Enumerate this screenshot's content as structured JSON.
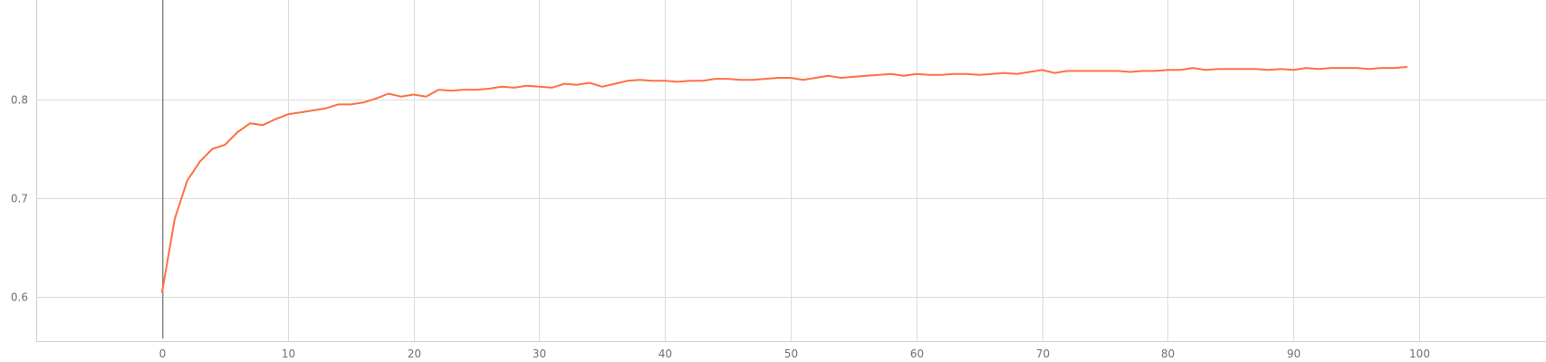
{
  "chart_data": {
    "type": "line",
    "title": "",
    "xlabel": "",
    "ylabel": "",
    "xlim": [
      -10,
      110
    ],
    "ylim": [
      0.555,
      0.875
    ],
    "x_ticks": [
      0,
      10,
      20,
      30,
      40,
      50,
      60,
      70,
      80,
      90,
      100
    ],
    "x_tick_labels": [
      "0",
      "10",
      "20",
      "30",
      "40",
      "50",
      "60",
      "70",
      "80",
      "90",
      "100"
    ],
    "y_ticks": [
      0.6,
      0.7,
      0.8
    ],
    "y_tick_labels": [
      "0.6",
      "0.7",
      "0.8"
    ],
    "grid": true,
    "legend": "none",
    "colors": {
      "series": "#ff7043",
      "grid": "#dcdcdc",
      "zero_line": "#8a8a8a",
      "tick_text": "#6f6f6f"
    },
    "series": [
      {
        "color": "#ff7043",
        "x": [
          0,
          1,
          2,
          3,
          4,
          5,
          6,
          7,
          8,
          9,
          10,
          11,
          12,
          13,
          14,
          15,
          16,
          17,
          18,
          19,
          20,
          21,
          22,
          23,
          24,
          25,
          26,
          27,
          28,
          29,
          30,
          31,
          32,
          33,
          34,
          35,
          36,
          37,
          38,
          39,
          40,
          41,
          42,
          43,
          44,
          45,
          46,
          47,
          48,
          49,
          50,
          51,
          52,
          53,
          54,
          55,
          56,
          57,
          58,
          59,
          60,
          61,
          62,
          63,
          64,
          65,
          66,
          67,
          68,
          69,
          70,
          71,
          72,
          73,
          74,
          75,
          76,
          77,
          78,
          79,
          80,
          81,
          82,
          83,
          84,
          85,
          86,
          87,
          88,
          89,
          90,
          91,
          92,
          93,
          94,
          95,
          96,
          97,
          98,
          99
        ],
        "values": [
          0.605,
          0.679,
          0.718,
          0.737,
          0.75,
          0.754,
          0.767,
          0.776,
          0.774,
          0.78,
          0.785,
          0.787,
          0.789,
          0.791,
          0.795,
          0.795,
          0.797,
          0.801,
          0.806,
          0.803,
          0.805,
          0.803,
          0.81,
          0.809,
          0.81,
          0.81,
          0.811,
          0.813,
          0.812,
          0.814,
          0.813,
          0.812,
          0.816,
          0.815,
          0.817,
          0.813,
          0.816,
          0.819,
          0.82,
          0.819,
          0.819,
          0.818,
          0.819,
          0.819,
          0.821,
          0.821,
          0.82,
          0.82,
          0.821,
          0.822,
          0.822,
          0.82,
          0.822,
          0.824,
          0.822,
          0.823,
          0.824,
          0.825,
          0.826,
          0.824,
          0.826,
          0.825,
          0.825,
          0.826,
          0.826,
          0.825,
          0.826,
          0.827,
          0.826,
          0.828,
          0.83,
          0.827,
          0.829,
          0.829,
          0.829,
          0.829,
          0.829,
          0.828,
          0.829,
          0.829,
          0.83,
          0.83,
          0.832,
          0.83,
          0.831,
          0.831,
          0.831,
          0.831,
          0.83,
          0.831,
          0.83,
          0.832,
          0.831,
          0.832,
          0.832,
          0.832,
          0.831,
          0.832,
          0.832,
          0.833
        ]
      }
    ]
  }
}
